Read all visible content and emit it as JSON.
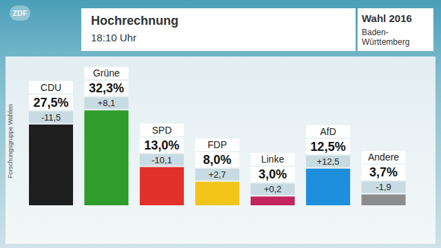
{
  "chart_data": {
    "type": "bar",
    "title": "Hochrechnung",
    "subtitle": "18:10 Uhr",
    "header": "Wahl 2016",
    "region": "Baden-Württemberg",
    "source": "Forschungsgruppe Wahlen",
    "channel": "ZDF",
    "categories": [
      "CDU",
      "Grüne",
      "SPD",
      "FDP",
      "Linke",
      "AfD",
      "Andere"
    ],
    "values": [
      27.5,
      32.3,
      13.0,
      8.0,
      3.0,
      12.5,
      3.7
    ],
    "value_labels": [
      "27,5%",
      "32,3%",
      "13,0%",
      "8,0%",
      "3,0%",
      "12,5%",
      "3,7%"
    ],
    "changes": [
      -11.5,
      8.1,
      -10.1,
      2.7,
      0.2,
      12.5,
      -1.9
    ],
    "change_labels": [
      "-11,5",
      "+8,1",
      "-10,1",
      "+2,7",
      "+0,2",
      "+12,5",
      "-1,9"
    ],
    "colors": [
      "#1e1e1e",
      "#2e9d2a",
      "#e2312b",
      "#f2c518",
      "#c3245e",
      "#1d8fdc",
      "#8c8c8c"
    ],
    "ylim": [
      0,
      60
    ],
    "data_labels": true,
    "tick_labels": false
  }
}
